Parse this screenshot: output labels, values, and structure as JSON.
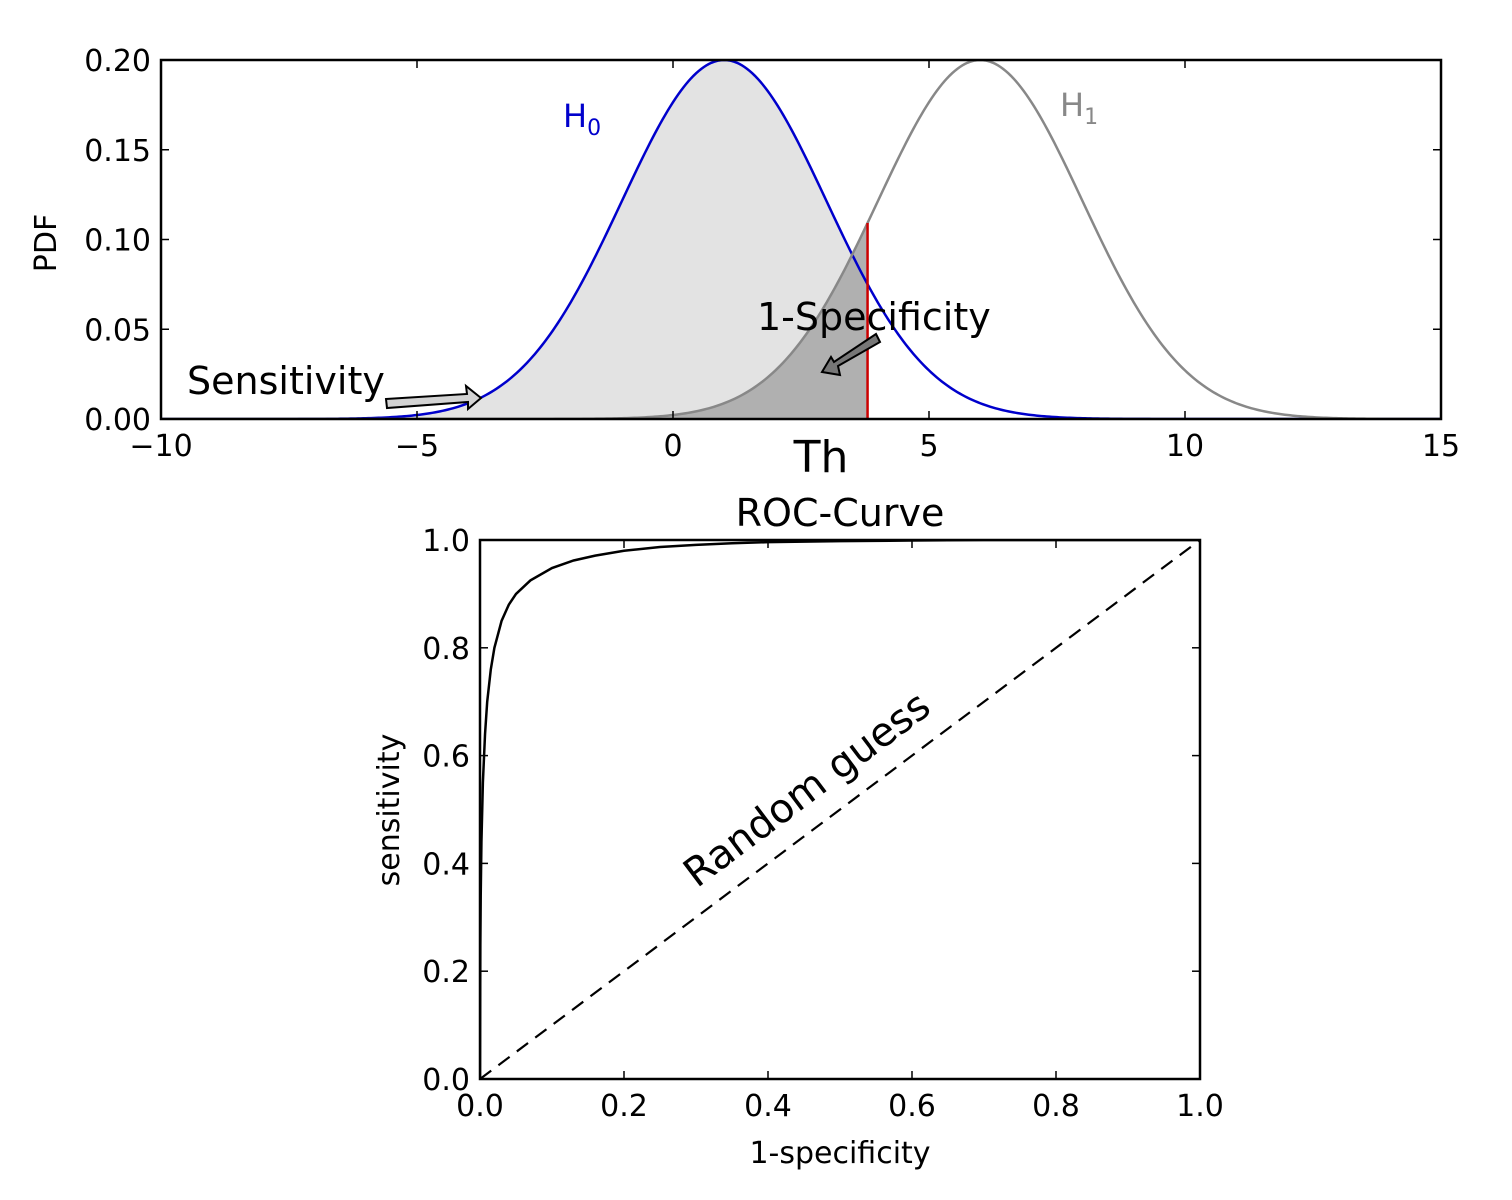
{
  "chart_data": [
    {
      "type": "area",
      "ylabel": "PDF",
      "xlim": [
        -10,
        15
      ],
      "ylim": [
        0,
        0.2
      ],
      "x_ticks": [
        -10,
        -5,
        0,
        5,
        10,
        15
      ],
      "x_tick_labels": [
        "−10",
        "−5",
        "0",
        "5",
        "10",
        "15"
      ],
      "y_ticks": [
        0,
        0.05,
        0.1,
        0.15,
        0.2
      ],
      "y_tick_labels": [
        "0.00",
        "0.05",
        "0.10",
        "0.15",
        "0.20"
      ],
      "grid": false,
      "series": [
        {
          "key": "h0",
          "label_main": "H",
          "label_sub": "0",
          "mean": 1,
          "sd": 2,
          "peak": 0.2,
          "color": "#0000cc"
        },
        {
          "key": "h1",
          "label_main": "H",
          "label_sub": "1",
          "mean": 6,
          "sd": 2,
          "peak": 0.2,
          "color": "#888888"
        }
      ],
      "threshold": {
        "x": 3.8,
        "label": "Th",
        "color": "#cc0000"
      },
      "shaded_regions": [
        {
          "under": "h0",
          "from": -10,
          "to": 3.8,
          "color": "#e3e3e3"
        },
        {
          "under": "h1",
          "from": -10,
          "to": 3.8,
          "color": "#b0b0b0"
        }
      ],
      "annotations": [
        {
          "text": "Sensitivity",
          "points_to": [
            -3.8,
            0.01
          ]
        },
        {
          "text": "1-Specificity",
          "points_to": [
            3.8,
            0.038
          ]
        }
      ]
    },
    {
      "type": "line",
      "title": "ROC-Curve",
      "xlabel": "1-specificity",
      "ylabel": "sensitivity",
      "xlim": [
        0,
        1
      ],
      "ylim": [
        0,
        1
      ],
      "x_ticks": [
        0,
        0.2,
        0.4,
        0.6,
        0.8,
        1.0
      ],
      "x_tick_labels": [
        "0.0",
        "0.2",
        "0.4",
        "0.6",
        "0.8",
        "1.0"
      ],
      "y_ticks": [
        0,
        0.2,
        0.4,
        0.6,
        0.8,
        1.0
      ],
      "y_tick_labels": [
        "0.0",
        "0.2",
        "0.4",
        "0.6",
        "0.8",
        "1.0"
      ],
      "grid": false,
      "series": [
        {
          "key": "roc",
          "color": "#000000",
          "x": [
            0,
            0.0005,
            0.001,
            0.002,
            0.004,
            0.007,
            0.01,
            0.015,
            0.02,
            0.03,
            0.04,
            0.05,
            0.07,
            0.1,
            0.13,
            0.16,
            0.2,
            0.25,
            0.3,
            0.35,
            0.4,
            0.5,
            0.6,
            0.7,
            0.8,
            0.9,
            1.0
          ],
          "y": [
            0,
            0.25,
            0.34,
            0.44,
            0.55,
            0.64,
            0.7,
            0.76,
            0.8,
            0.85,
            0.88,
            0.9,
            0.925,
            0.948,
            0.962,
            0.971,
            0.98,
            0.987,
            0.991,
            0.994,
            0.996,
            0.998,
            0.999,
            1.0,
            1.0,
            1.0,
            1.0
          ]
        },
        {
          "key": "random",
          "style": "dashed",
          "color": "#000000",
          "x": [
            0,
            1
          ],
          "y": [
            0,
            1
          ]
        }
      ],
      "annotations": [
        {
          "text": "Random guess",
          "rotation_deg": -36.9
        }
      ]
    }
  ]
}
